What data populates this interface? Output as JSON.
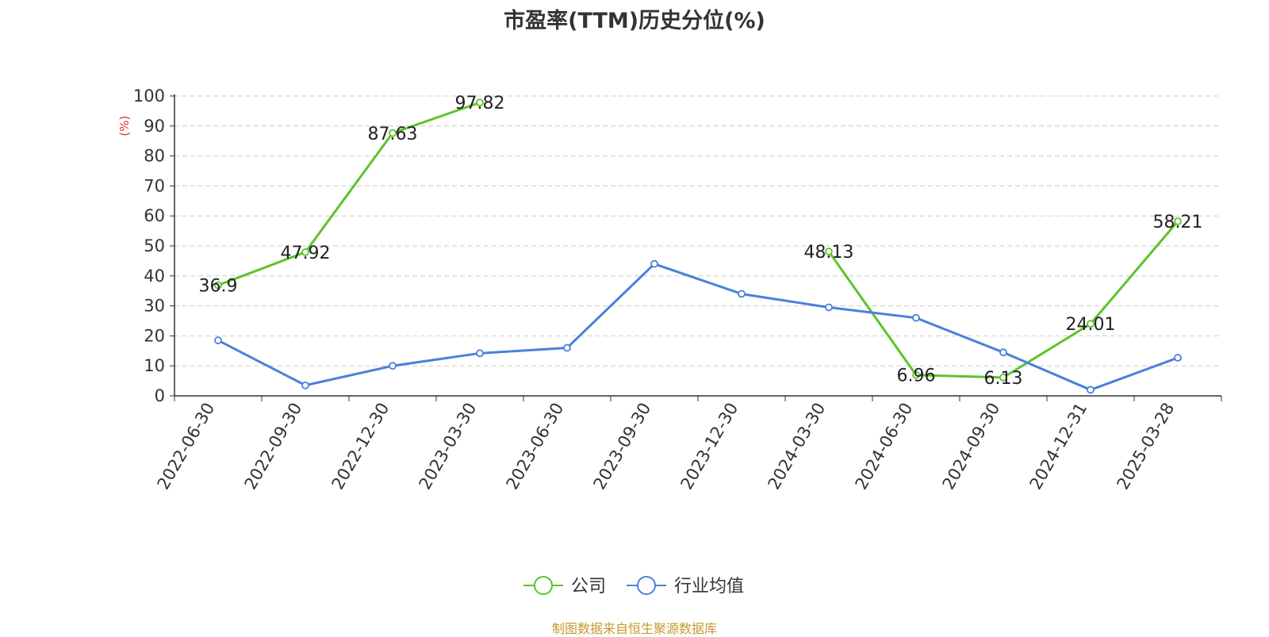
{
  "chart_data": {
    "type": "line",
    "title": "市盈率(TTM)历史分位(%)",
    "ylabel": "(%)",
    "ylim": [
      0,
      100
    ],
    "yticks": [
      0,
      10,
      20,
      30,
      40,
      50,
      60,
      70,
      80,
      90,
      100
    ],
    "grid": true,
    "legend_position": "bottom-center",
    "categories": [
      "2022-06-30",
      "2022-09-30",
      "2022-12-30",
      "2023-03-30",
      "2023-06-30",
      "2023-09-30",
      "2023-12-30",
      "2024-03-30",
      "2024-06-30",
      "2024-09-30",
      "2024-12-31",
      "2025-03-28"
    ],
    "series": [
      {
        "name": "公司",
        "color": "#5cc42a",
        "values": [
          36.9,
          47.92,
          87.63,
          97.82,
          null,
          null,
          null,
          48.13,
          6.96,
          6.13,
          24.01,
          58.21
        ],
        "data_labels": [
          "36.9",
          "47.92",
          "87.63",
          "97.82",
          "",
          "",
          "",
          "48.13",
          "6.96",
          "6.13",
          "24.01",
          "58.21"
        ]
      },
      {
        "name": "行业均值",
        "color": "#4a80dc",
        "values": [
          18.5,
          3.5,
          10.0,
          14.2,
          16.0,
          44.0,
          34.0,
          29.5,
          26.0,
          14.5,
          2.0,
          12.7
        ]
      }
    ]
  },
  "source_text": "制图数据来自恒生聚源数据库"
}
